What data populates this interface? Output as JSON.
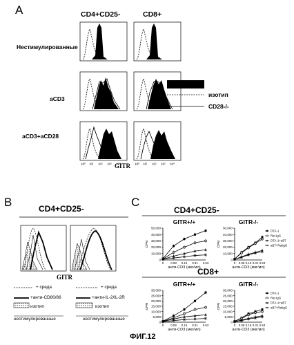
{
  "panel_a": {
    "letter": "A",
    "columns": [
      "CD4+CD25-",
      "CD8+"
    ],
    "rows": [
      "Нестимулированные",
      "aCD3",
      "aCD3+aCD28"
    ],
    "x_axis_label": "GITR",
    "x_ticks": [
      "10⁰",
      "10¹",
      "10²",
      "10³",
      "10⁴"
    ],
    "legend": [
      {
        "label": "",
        "style": "filled-black"
      },
      {
        "label": "изотип",
        "style": "dashed"
      },
      {
        "label": "CD28-/-",
        "style": "solid"
      }
    ]
  },
  "panel_b": {
    "letter": "B",
    "title": "CD4+CD25-",
    "x_axis_label": "GITR",
    "legend_left": [
      {
        "label": "+ среда",
        "style": "dashed"
      },
      {
        "label": "+анти-CD80/86",
        "style": "thick"
      },
      {
        "label": "изотип",
        "style": "dotted-box"
      },
      {
        "label": "нестимулированные",
        "style": "thin"
      }
    ],
    "legend_right": [
      {
        "label": "+ среда",
        "style": "dashed"
      },
      {
        "label": "+анти-IL-2/IL-2R",
        "style": "thick"
      },
      {
        "label": "изотип",
        "style": "dotted-box"
      },
      {
        "label": "нестимулированные",
        "style": "thin"
      }
    ]
  },
  "panel_c": {
    "letter": "C",
    "group_titles": [
      "CD4+CD25-",
      "CD8+"
    ],
    "plot_titles": [
      "GITR+/+",
      "GITR-/-",
      "GITR+/+",
      "GITR-/-"
    ],
    "y_label": "CPM",
    "x_label": "анти-CD3 (мкг/мл)",
    "series_labels": [
      "DTA-1",
      "Rat IgG",
      "DTA-1+aB7",
      "aB7+RatIgG"
    ]
  },
  "figure_caption": "ФИГ.12",
  "chart_data": [
    {
      "type": "line",
      "title": "GITR+/+",
      "group": "CD4+CD25-",
      "x": [
        "0",
        "0.08",
        "0.16",
        "0.31",
        "0.63"
      ],
      "xlabel": "анти-CD3 (мкг/мл)",
      "ylabel": "CPM",
      "ylim": [
        0,
        50000
      ],
      "yticks": [
        "0",
        "10,000",
        "20,000",
        "30,000",
        "40,000",
        "50,000"
      ],
      "series": [
        {
          "name": "DTA-1",
          "values": [
            2000,
            22000,
            33000,
            40000,
            46000
          ]
        },
        {
          "name": "Rat IgG",
          "values": [
            1500,
            12000,
            20000,
            27000,
            30000
          ]
        },
        {
          "name": "DTA-1+aB7",
          "values": [
            1200,
            6000,
            10000,
            14000,
            16000
          ]
        },
        {
          "name": "aB7+RatIgG",
          "values": [
            1000,
            3000,
            5000,
            7000,
            8000
          ]
        }
      ]
    },
    {
      "type": "line",
      "title": "GITR-/-",
      "group": "CD4+CD25-",
      "x": [
        "0",
        "0.08",
        "0.16",
        "0.31",
        "0.63"
      ],
      "xlabel": "анти-CD3 (мкг/мл)",
      "ylabel": "CPM",
      "ylim": [
        0,
        50000
      ],
      "yticks": [
        "0",
        "10,000",
        "20,000",
        "30,000",
        "40,000",
        "50,000"
      ],
      "series": [
        {
          "name": "DTA-1",
          "values": [
            1500,
            12000,
            20000,
            27000,
            36000
          ]
        },
        {
          "name": "Rat IgG",
          "values": [
            1500,
            11000,
            19000,
            26000,
            33000
          ]
        },
        {
          "name": "DTA-1+aB7",
          "values": [
            1000,
            5000,
            9000,
            12000,
            15000
          ]
        },
        {
          "name": "aB7+RatIgG",
          "values": [
            1000,
            4000,
            8000,
            11000,
            13000
          ]
        }
      ]
    },
    {
      "type": "line",
      "title": "GITR+/+",
      "group": "CD8+",
      "x": [
        "0",
        "0.08",
        "0.16",
        "0.31",
        "0.63"
      ],
      "xlabel": "анти-CD3 (мкг/мл)",
      "ylabel": "CPM",
      "ylim": [
        0,
        30000
      ],
      "yticks": [
        "0",
        "5,000",
        "10,000",
        "15,000",
        "20,000",
        "25,000",
        "30,000"
      ],
      "series": [
        {
          "name": "DTA-1",
          "values": [
            1000,
            6000,
            12000,
            20000,
            28000
          ]
        },
        {
          "name": "Rat IgG",
          "values": [
            800,
            4000,
            8000,
            12000,
            14000
          ]
        },
        {
          "name": "DTA-1+aB7",
          "values": [
            600,
            3000,
            5000,
            6000,
            7000
          ]
        },
        {
          "name": "aB7+RatIgG",
          "values": [
            500,
            1500,
            2500,
            3000,
            3500
          ]
        }
      ]
    },
    {
      "type": "line",
      "title": "GITR-/-",
      "group": "CD8+",
      "x": [
        "0",
        "0.08",
        "0.16",
        "0.31",
        "0.63"
      ],
      "xlabel": "анти-CD3 (мкг/мл)",
      "ylabel": "CPM",
      "ylim": [
        0,
        30000
      ],
      "yticks": [
        "0",
        "5,000",
        "10,000",
        "15,000",
        "20,000",
        "25,000",
        "30,000"
      ],
      "series": [
        {
          "name": "DTA-1",
          "values": [
            800,
            4000,
            8000,
            10000,
            12000
          ]
        },
        {
          "name": "Rat IgG",
          "values": [
            800,
            3500,
            7000,
            9000,
            10000
          ]
        },
        {
          "name": "DTA-1+aB7",
          "values": [
            500,
            2000,
            3500,
            5000,
            6000
          ]
        },
        {
          "name": "aB7+RatIgG",
          "values": [
            500,
            1500,
            3000,
            4000,
            5000
          ]
        }
      ]
    }
  ]
}
